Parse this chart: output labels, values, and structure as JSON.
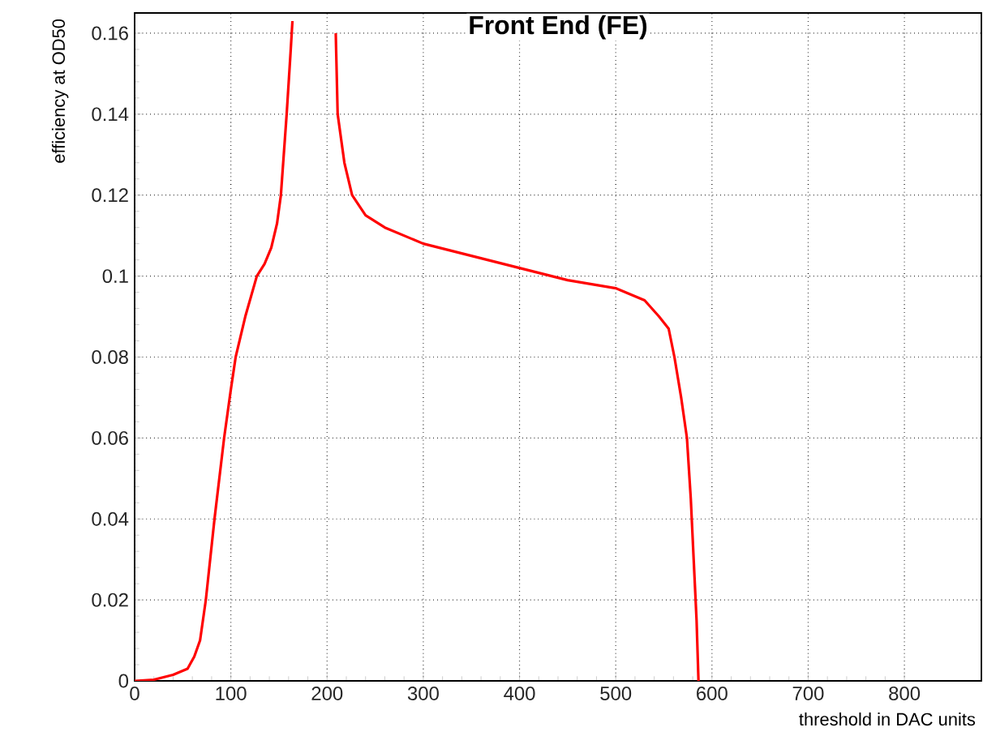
{
  "chart_data": {
    "type": "line",
    "title": "Front End (FE)",
    "xlabel": "threshold in DAC units",
    "ylabel": "efficiency at OD50",
    "x": [
      0,
      20,
      40,
      55,
      62,
      68,
      74,
      83,
      93,
      100,
      105,
      115,
      127,
      135,
      142,
      148,
      152,
      158,
      162,
      164,
      186,
      209,
      211,
      218,
      226,
      240,
      260,
      300,
      350,
      400,
      450,
      500,
      530,
      545,
      555,
      561,
      568,
      574,
      578,
      581,
      584,
      586
    ],
    "series": [
      {
        "color": "#ff0000",
        "values": [
          0,
          0.0003,
          0.0015,
          0.003,
          0.006,
          0.01,
          0.02,
          0.04,
          0.06,
          0.072,
          0.08,
          0.09,
          0.1,
          0.103,
          0.107,
          0.113,
          0.12,
          0.14,
          0.155,
          0.163,
          null,
          0.16,
          0.14,
          0.128,
          0.12,
          0.115,
          0.112,
          0.108,
          0.105,
          0.102,
          0.099,
          0.097,
          0.094,
          0.09,
          0.087,
          0.08,
          0.07,
          0.06,
          0.045,
          0.03,
          0.015,
          0
        ]
      }
    ],
    "xlim": [
      0,
      880
    ],
    "ylim": [
      0,
      0.165
    ],
    "xticks": [
      0,
      100,
      200,
      300,
      400,
      500,
      600,
      700,
      800
    ],
    "yticks": [
      0,
      0.02,
      0.04,
      0.06,
      0.08,
      0.1,
      0.12,
      0.14,
      0.16
    ],
    "grid": true,
    "line_style": "solid"
  }
}
